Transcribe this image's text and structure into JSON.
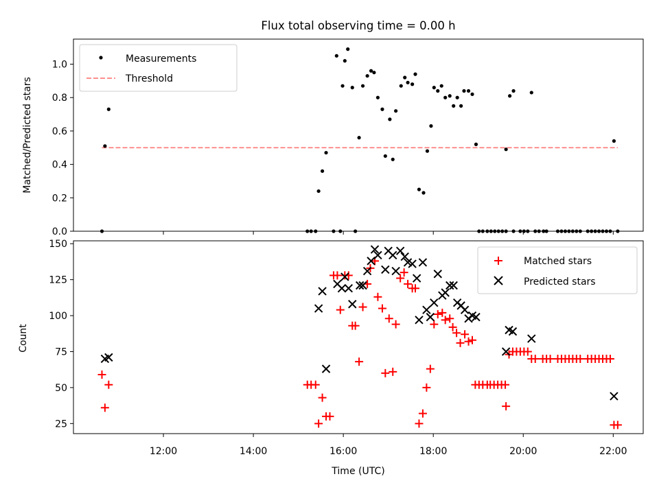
{
  "chart_data": [
    {
      "type": "scatter",
      "title": "Flux total observing time = 0.00 h",
      "ylabel": "Matched/Predicted stars",
      "xlabel": "",
      "xlim": [
        "10:00",
        "22:40"
      ],
      "ylim": [
        0,
        1.15
      ],
      "y_ticks": [
        "0.0",
        "0.2",
        "0.4",
        "0.6",
        "0.8",
        "1.0"
      ],
      "legend_position": "upper-left",
      "legend": {
        "measurements": "Measurements",
        "threshold": "Threshold"
      },
      "series": [
        {
          "name": "Measurements",
          "points": [
            [
              "10:38",
              0
            ],
            [
              "10:42",
              0.51
            ],
            [
              "10:47",
              0.73
            ],
            [
              "15:12",
              0
            ],
            [
              "15:17",
              0
            ],
            [
              "15:23",
              0
            ],
            [
              "15:27",
              0.24
            ],
            [
              "15:32",
              0.36
            ],
            [
              "15:37",
              0.47
            ],
            [
              "15:47",
              0
            ],
            [
              "15:51",
              1.05
            ],
            [
              "15:56",
              0
            ],
            [
              "15:59",
              0.87
            ],
            [
              "16:02",
              1.02
            ],
            [
              "16:06",
              1.09
            ],
            [
              "16:12",
              0.86
            ],
            [
              "16:16",
              0
            ],
            [
              "16:21",
              0.56
            ],
            [
              "16:26",
              0.87
            ],
            [
              "16:32",
              0.93
            ],
            [
              "16:37",
              0.96
            ],
            [
              "16:41",
              0.95
            ],
            [
              "16:46",
              0.8
            ],
            [
              "16:52",
              0.73
            ],
            [
              "16:56",
              0.45
            ],
            [
              "17:02",
              0.67
            ],
            [
              "17:06",
              0.43
            ],
            [
              "17:10",
              0.72
            ],
            [
              "17:17",
              0.87
            ],
            [
              "17:22",
              0.92
            ],
            [
              "17:26",
              0.89
            ],
            [
              "17:32",
              0.88
            ],
            [
              "17:36",
              0.94
            ],
            [
              "17:41",
              0.25
            ],
            [
              "17:47",
              0.23
            ],
            [
              "17:52",
              0.48
            ],
            [
              "17:57",
              0.63
            ],
            [
              "18:01",
              0.86
            ],
            [
              "18:06",
              0.84
            ],
            [
              "18:11",
              0.87
            ],
            [
              "18:16",
              0.8
            ],
            [
              "18:22",
              0.81
            ],
            [
              "18:27",
              0.75
            ],
            [
              "18:32",
              0.8
            ],
            [
              "18:37",
              0.75
            ],
            [
              "18:41",
              0.84
            ],
            [
              "18:47",
              0.84
            ],
            [
              "18:52",
              0.82
            ],
            [
              "18:57",
              0.52
            ],
            [
              "19:01",
              0
            ],
            [
              "19:06",
              0
            ],
            [
              "19:12",
              0
            ],
            [
              "19:17",
              0
            ],
            [
              "19:22",
              0
            ],
            [
              "19:27",
              0
            ],
            [
              "19:32",
              0
            ],
            [
              "19:37",
              0.49
            ],
            [
              "19:42",
              0.81
            ],
            [
              "19:47",
              0.84
            ],
            [
              "19:37",
              0
            ],
            [
              "19:47",
              0
            ],
            [
              "19:56",
              0
            ],
            [
              "20:01",
              0
            ],
            [
              "20:06",
              0
            ],
            [
              "20:11",
              0.83
            ],
            [
              "20:16",
              0
            ],
            [
              "20:21",
              0
            ],
            [
              "20:27",
              0
            ],
            [
              "20:31",
              0
            ],
            [
              "20:46",
              0
            ],
            [
              "20:51",
              0
            ],
            [
              "20:56",
              0
            ],
            [
              "21:01",
              0
            ],
            [
              "21:06",
              0
            ],
            [
              "21:11",
              0
            ],
            [
              "21:16",
              0
            ],
            [
              "21:26",
              0
            ],
            [
              "21:31",
              0
            ],
            [
              "21:36",
              0
            ],
            [
              "21:41",
              0
            ],
            [
              "21:46",
              0
            ],
            [
              "21:51",
              0
            ],
            [
              "21:56",
              0
            ],
            [
              "22:01",
              0.54
            ],
            [
              "22:06",
              0
            ]
          ]
        },
        {
          "name": "Threshold",
          "line": [
            [
              "10:38",
              0.5
            ],
            [
              "22:06",
              0.5
            ]
          ]
        }
      ]
    },
    {
      "type": "scatter",
      "title": "",
      "xlabel": "Time (UTC)",
      "ylabel": "Count",
      "xlim": [
        "10:00",
        "22:40"
      ],
      "ylim": [
        18,
        152
      ],
      "x_ticks": [
        "12:00",
        "14:00",
        "16:00",
        "18:00",
        "20:00",
        "22:00"
      ],
      "y_ticks": [
        "25",
        "50",
        "75",
        "100",
        "125",
        "150"
      ],
      "legend_position": "upper-right",
      "legend": {
        "matched": "Matched stars",
        "predicted": "Predicted stars"
      },
      "series": [
        {
          "name": "Matched stars",
          "color": "#ff0000",
          "points": [
            [
              "10:38",
              59
            ],
            [
              "10:42",
              36
            ],
            [
              "10:47",
              52
            ],
            [
              "15:12",
              52
            ],
            [
              "15:17",
              52
            ],
            [
              "15:23",
              52
            ],
            [
              "15:27",
              25
            ],
            [
              "15:32",
              43
            ],
            [
              "15:37",
              30
            ],
            [
              "15:42",
              30
            ],
            [
              "15:47",
              128
            ],
            [
              "15:52",
              128
            ],
            [
              "15:56",
              104
            ],
            [
              "16:02",
              128
            ],
            [
              "16:07",
              128
            ],
            [
              "16:12",
              93
            ],
            [
              "16:16",
              93
            ],
            [
              "16:21",
              68
            ],
            [
              "16:26",
              106
            ],
            [
              "16:32",
              122
            ],
            [
              "16:36",
              133
            ],
            [
              "16:42",
              138
            ],
            [
              "16:46",
              113
            ],
            [
              "16:52",
              105
            ],
            [
              "16:56",
              60
            ],
            [
              "17:01",
              98
            ],
            [
              "17:06",
              61
            ],
            [
              "17:10",
              94
            ],
            [
              "17:16",
              126
            ],
            [
              "17:21",
              130
            ],
            [
              "17:26",
              122
            ],
            [
              "17:32",
              119
            ],
            [
              "17:36",
              119
            ],
            [
              "17:41",
              25
            ],
            [
              "17:46",
              32
            ],
            [
              "17:51",
              50
            ],
            [
              "17:56",
              63
            ],
            [
              "18:01",
              94
            ],
            [
              "18:06",
              101
            ],
            [
              "18:12",
              102
            ],
            [
              "18:16",
              97
            ],
            [
              "18:22",
              98
            ],
            [
              "18:26",
              92
            ],
            [
              "18:31",
              88
            ],
            [
              "18:36",
              81
            ],
            [
              "18:42",
              87
            ],
            [
              "18:47",
              82
            ],
            [
              "18:52",
              83
            ],
            [
              "18:56",
              52
            ],
            [
              "19:01",
              52
            ],
            [
              "19:06",
              52
            ],
            [
              "19:12",
              52
            ],
            [
              "19:16",
              52
            ],
            [
              "19:21",
              52
            ],
            [
              "19:26",
              52
            ],
            [
              "19:31",
              52
            ],
            [
              "19:37",
              37
            ],
            [
              "19:36",
              52
            ],
            [
              "19:41",
              73
            ],
            [
              "19:46",
              75
            ],
            [
              "19:51",
              75
            ],
            [
              "19:56",
              75
            ],
            [
              "20:01",
              75
            ],
            [
              "20:06",
              75
            ],
            [
              "20:11",
              70
            ],
            [
              "20:16",
              70
            ],
            [
              "20:26",
              70
            ],
            [
              "20:31",
              70
            ],
            [
              "20:36",
              70
            ],
            [
              "20:46",
              70
            ],
            [
              "20:51",
              70
            ],
            [
              "20:56",
              70
            ],
            [
              "21:01",
              70
            ],
            [
              "21:06",
              70
            ],
            [
              "21:11",
              70
            ],
            [
              "21:16",
              70
            ],
            [
              "21:26",
              70
            ],
            [
              "21:31",
              70
            ],
            [
              "21:36",
              70
            ],
            [
              "21:41",
              70
            ],
            [
              "21:46",
              70
            ],
            [
              "21:51",
              70
            ],
            [
              "21:56",
              70
            ],
            [
              "22:01",
              24
            ],
            [
              "22:06",
              24
            ]
          ]
        },
        {
          "name": "Predicted stars",
          "color": "#000000",
          "points": [
            [
              "10:42",
              70
            ],
            [
              "10:47",
              71
            ],
            [
              "15:27",
              105
            ],
            [
              "15:32",
              117
            ],
            [
              "15:37",
              63
            ],
            [
              "15:52",
              122
            ],
            [
              "15:58",
              119
            ],
            [
              "16:02",
              127
            ],
            [
              "16:07",
              119
            ],
            [
              "16:12",
              108
            ],
            [
              "16:22",
              121
            ],
            [
              "16:26",
              121
            ],
            [
              "16:32",
              131
            ],
            [
              "16:37",
              138
            ],
            [
              "16:42",
              146
            ],
            [
              "16:46",
              142
            ],
            [
              "16:56",
              132
            ],
            [
              "17:00",
              145
            ],
            [
              "17:06",
              142
            ],
            [
              "17:10",
              131
            ],
            [
              "17:16",
              145
            ],
            [
              "17:22",
              141
            ],
            [
              "17:26",
              137
            ],
            [
              "17:32",
              136
            ],
            [
              "17:38",
              126
            ],
            [
              "17:41",
              97
            ],
            [
              "17:46",
              137
            ],
            [
              "17:51",
              104
            ],
            [
              "17:56",
              99
            ],
            [
              "18:01",
              109
            ],
            [
              "18:06",
              129
            ],
            [
              "18:12",
              114
            ],
            [
              "18:16",
              116
            ],
            [
              "18:22",
              121
            ],
            [
              "18:27",
              121
            ],
            [
              "18:32",
              109
            ],
            [
              "18:37",
              107
            ],
            [
              "18:42",
              104
            ],
            [
              "18:47",
              98
            ],
            [
              "18:52",
              100
            ],
            [
              "18:57",
              99
            ],
            [
              "19:37",
              75
            ],
            [
              "19:41",
              90
            ],
            [
              "19:46",
              89
            ],
            [
              "20:11",
              84
            ],
            [
              "22:01",
              44
            ]
          ]
        }
      ]
    }
  ]
}
